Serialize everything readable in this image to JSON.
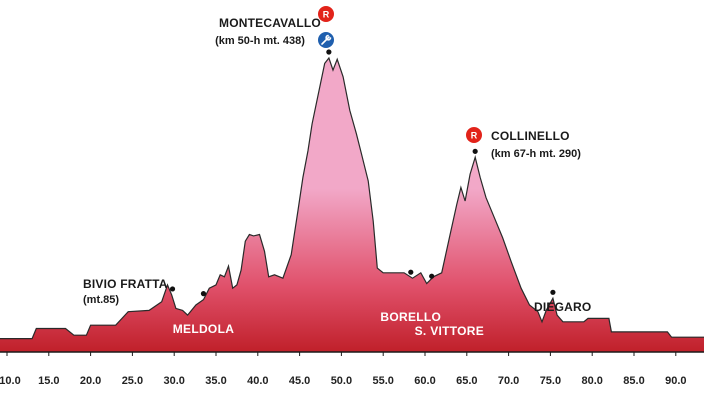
{
  "chart_data": {
    "type": "area",
    "title": "",
    "xlabel": "",
    "ylabel": "",
    "x_unit": "km",
    "y_unit": "mt",
    "xlim": [
      10,
      94
    ],
    "ylim": [
      0,
      438
    ],
    "grid": false,
    "x_ticks": [
      "10.0",
      "15.0",
      "20.0",
      "25.0",
      "30.0",
      "35.0",
      "40.0",
      "45.0",
      "50.0",
      "55.0",
      "60.0",
      "65.0",
      "70.0",
      "75.0",
      "80.0",
      "85.0",
      "90.0"
    ],
    "profile": [
      [
        10,
        20
      ],
      [
        13,
        20
      ],
      [
        13.5,
        35
      ],
      [
        17,
        35
      ],
      [
        18,
        25
      ],
      [
        19.5,
        25
      ],
      [
        20,
        40
      ],
      [
        23,
        40
      ],
      [
        24.5,
        60
      ],
      [
        27,
        62
      ],
      [
        28.5,
        75
      ],
      [
        29.2,
        100
      ],
      [
        29.7,
        85
      ],
      [
        30.2,
        65
      ],
      [
        31,
        62
      ],
      [
        31.6,
        55
      ],
      [
        32.6,
        70
      ],
      [
        33.5,
        78
      ],
      [
        34.2,
        95
      ],
      [
        35,
        100
      ],
      [
        35.5,
        115
      ],
      [
        36,
        112
      ],
      [
        36.5,
        128
      ],
      [
        37,
        95
      ],
      [
        37.5,
        100
      ],
      [
        38,
        122
      ],
      [
        38.5,
        165
      ],
      [
        39,
        175
      ],
      [
        39.5,
        173
      ],
      [
        40.2,
        175
      ],
      [
        40.8,
        150
      ],
      [
        41.3,
        112
      ],
      [
        42,
        115
      ],
      [
        43,
        110
      ],
      [
        44,
        145
      ],
      [
        44.8,
        210
      ],
      [
        45.4,
        260
      ],
      [
        46,
        300
      ],
      [
        46.5,
        340
      ],
      [
        47,
        370
      ],
      [
        47.5,
        400
      ],
      [
        48,
        430
      ],
      [
        48.5,
        438
      ],
      [
        49,
        420
      ],
      [
        49.5,
        436
      ],
      [
        50.2,
        410
      ],
      [
        51,
        360
      ],
      [
        51.8,
        325
      ],
      [
        52.4,
        295
      ],
      [
        53.2,
        255
      ],
      [
        53.8,
        195
      ],
      [
        54.3,
        125
      ],
      [
        55,
        118
      ],
      [
        57.5,
        118
      ],
      [
        58.5,
        110
      ],
      [
        59.5,
        118
      ],
      [
        60.2,
        102
      ],
      [
        61,
        112
      ],
      [
        62,
        118
      ],
      [
        63,
        175
      ],
      [
        63.8,
        220
      ],
      [
        64.3,
        245
      ],
      [
        64.8,
        225
      ],
      [
        65.4,
        265
      ],
      [
        66,
        290
      ],
      [
        66.6,
        260
      ],
      [
        67.3,
        230
      ],
      [
        68.3,
        200
      ],
      [
        69.3,
        170
      ],
      [
        70.3,
        135
      ],
      [
        71.5,
        95
      ],
      [
        72.5,
        70
      ],
      [
        73.5,
        60
      ],
      [
        74,
        45
      ],
      [
        74.5,
        62
      ],
      [
        75.3,
        80
      ],
      [
        75.8,
        55
      ],
      [
        76.5,
        45
      ],
      [
        79,
        45
      ],
      [
        79.5,
        50
      ],
      [
        82,
        50
      ],
      [
        82.3,
        30
      ],
      [
        89,
        30
      ],
      [
        89.5,
        22
      ],
      [
        94,
        22
      ]
    ],
    "annotations": [
      {
        "name": "MONTECAVALLO",
        "detail": "(km 50-h mt. 438)",
        "km": 48.5,
        "alt": 438,
        "badges": [
          "R",
          "wrench"
        ]
      },
      {
        "name": "COLLINELLO",
        "detail": "(km 67-h mt. 290)",
        "km": 66,
        "alt": 290,
        "badges": [
          "R"
        ]
      },
      {
        "name": "BIVIO FRATTA",
        "detail": "(mt.85)",
        "km": 29.8,
        "alt": 85,
        "badges": []
      },
      {
        "name": "DIEGARO",
        "detail": "",
        "km": 75.3,
        "alt": 80,
        "badges": []
      }
    ],
    "towns": [
      {
        "name": "MELDOLA",
        "km": 33.5
      },
      {
        "name": "BORELLO",
        "km": 58.3
      },
      {
        "name": "S. VITTORE",
        "km": 61
      }
    ],
    "points": [
      {
        "km": 29.8,
        "alt": 85
      },
      {
        "km": 33.5,
        "alt": 78
      },
      {
        "km": 48.5,
        "alt": 438
      },
      {
        "km": 58.3,
        "alt": 110
      },
      {
        "km": 60.8,
        "alt": 104
      },
      {
        "km": 66,
        "alt": 290
      },
      {
        "km": 75.3,
        "alt": 80
      }
    ],
    "colors": {
      "summit": "#f2a8c8",
      "mid": "#e0506a",
      "base": "#c0202a",
      "axis": "#1a1a1a",
      "outline": "#2a2a2a",
      "badge_red": "#e2231a",
      "badge_blue": "#1f5fae"
    }
  }
}
